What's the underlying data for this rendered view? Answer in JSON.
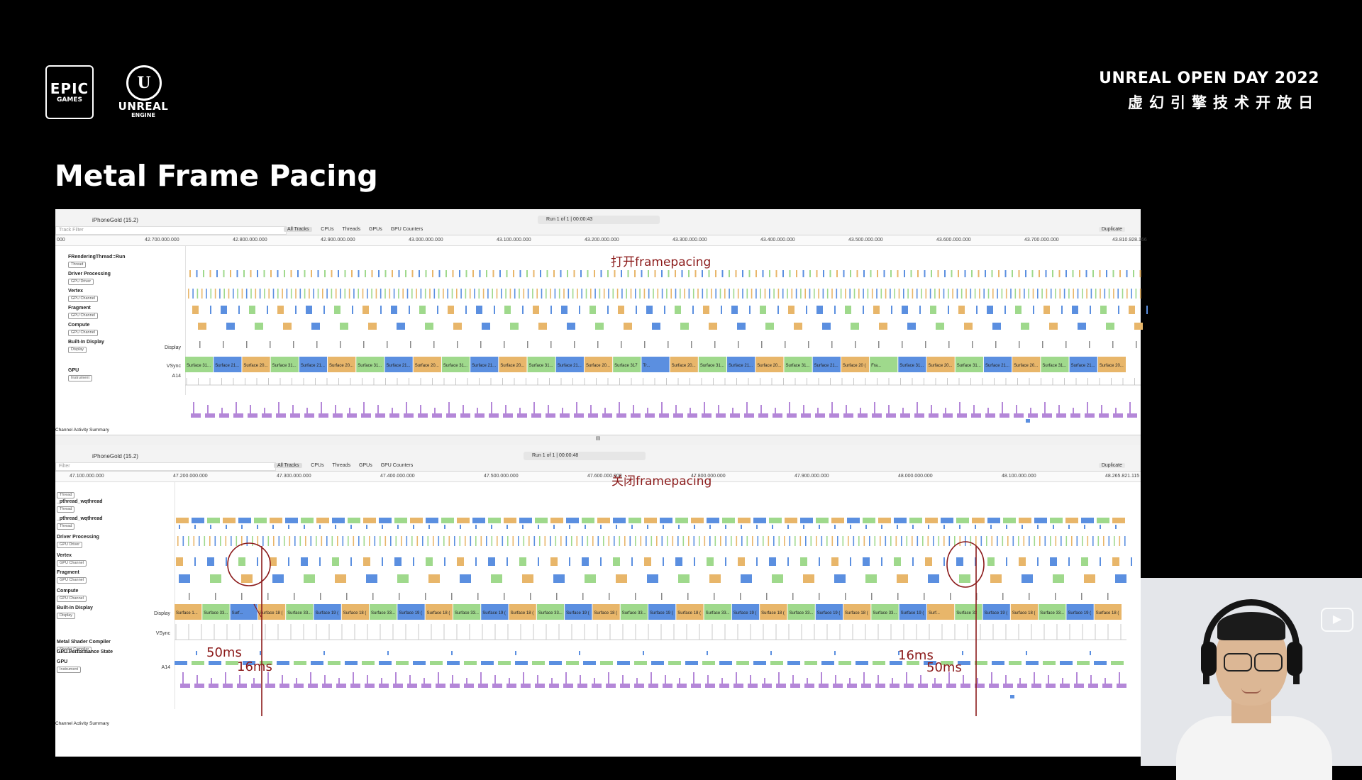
{
  "header": {
    "epic_line1": "EPIC",
    "epic_line2": "GAMES",
    "ue_line1": "UNREAL",
    "ue_line2": "ENGINE",
    "event_line1": "UNREAL OPEN DAY 2022",
    "event_line2": "虚幻引擎技术开放日"
  },
  "slide_title": "Metal Frame Pacing",
  "colors": {
    "orange": "#e8b66a",
    "blue": "#5b8fe0",
    "green": "#9fd98c",
    "purple": "#b487d8",
    "annotation": "#8b1a1a"
  },
  "top_trace": {
    "device": "iPhoneGold (15.2)",
    "run": "Run 1 of 1  |  00:00:43",
    "filter_placeholder": "Track Filter",
    "tabs": [
      "All Tracks",
      "CPUs",
      "Threads",
      "GPUs",
      "GPU Counters"
    ],
    "duplicate": "Duplicate",
    "ruler": [
      "000",
      "42.700.000.000",
      "42.800.000.000",
      "42.900.000.000",
      "43.000.000.000",
      "43.100.000.000",
      "43.200.000.000",
      "43.300.000.000",
      "43.400.000.000",
      "43.500.000.000",
      "43.600.000.000",
      "43.700.000.000",
      "43.810.928.166"
    ],
    "annotation": "打开framepacing",
    "lanes": [
      {
        "name": "FRenderingThread::Run",
        "tag": "Thread",
        "id": "0x4ae4dc5",
        "right": ""
      },
      {
        "name": "Driver Processing",
        "tag": "GPU Driver",
        "right": ""
      },
      {
        "name": "Vertex",
        "tag": "GPU Channel",
        "right": ""
      },
      {
        "name": "Fragment",
        "tag": "GPU Channel",
        "right": ""
      },
      {
        "name": "Compute",
        "tag": "GPU Channel",
        "right": ""
      },
      {
        "name": "Built-In Display",
        "tag": "Display",
        "right": "Display"
      },
      {
        "name": "",
        "tag": "",
        "right": "VSync"
      },
      {
        "name": "GPU",
        "tag": "Instrument",
        "right": "A14"
      }
    ],
    "display_labels": [
      "Surface 31...",
      "Surface 21...",
      "Surface 20...",
      "Surface 31...",
      "Surface 21...",
      "Surface 20...",
      "Surface 31...",
      "Surface 21...",
      "Surface 20...",
      "Surface 31...",
      "Surface 21...",
      "Surface 20...",
      "Surface 31...",
      "Surface 21...",
      "Surface 20...",
      "Surface 317",
      "Tr...",
      "Surface 20...",
      "Surface 31...",
      "Surface 21...",
      "Surface 20...",
      "Surface 31...",
      "Surface 21...",
      "Surface 20 (",
      "Fra...",
      "Surface 31...",
      "Surface 20...",
      "Surface 31...",
      "Surface 21...",
      "Surface 20...",
      "Surface 31...",
      "Surface 21...",
      "Surface 20..."
    ],
    "summary": "Channel Activity Summary"
  },
  "bottom_trace": {
    "device": "iPhoneGold (15.2)",
    "run": "Run 1 of 1  |  00:00:48",
    "filter_placeholder": "Filter",
    "tabs": [
      "All Tracks",
      "CPUs",
      "Threads",
      "GPUs",
      "GPU Counters"
    ],
    "duplicate": "Duplicate",
    "ruler": [
      "47.100.000.000",
      "47.200.000.000",
      "47.300.000.000",
      "47.400.000.000",
      "47.500.000.000",
      "47.600.000.000",
      "47.800.000.000",
      "47.900.000.000",
      "48.000.000.000",
      "48.100.000.000",
      "48.265.821.115"
    ],
    "annotation": "关闭framepacing",
    "lanes": [
      {
        "name": "",
        "tag": "Thread",
        "id": "0x4ab622",
        "right": ""
      },
      {
        "name": "_pthread_wqthread",
        "tag": "Thread",
        "id": "0x4ab64c",
        "right": ""
      },
      {
        "name": "_pthread_wqthread",
        "tag": "Thread",
        "id": "0x4ab6c2",
        "right": ""
      },
      {
        "name": "Driver Processing",
        "tag": "GPU Driver",
        "right": ""
      },
      {
        "name": "Vertex",
        "tag": "GPU Channel",
        "right": ""
      },
      {
        "name": "Fragment",
        "tag": "GPU Channel",
        "right": ""
      },
      {
        "name": "Compute",
        "tag": "GPU Channel",
        "right": ""
      },
      {
        "name": "Built-In Display",
        "tag": "Display",
        "right": "Display"
      },
      {
        "name": "",
        "tag": "",
        "right": "VSync"
      },
      {
        "name": "Metal Shader Compiler",
        "tag": "Shader Compiler",
        "right": ""
      },
      {
        "name": "GPU Performance State",
        "tag": "",
        "right": ""
      },
      {
        "name": "GPU",
        "tag": "Instrument",
        "right": "A14"
      }
    ],
    "display_labels": [
      "Surface 1...",
      "Surface 33...",
      "Surf...",
      "Surface 18 (",
      "Surface 33...",
      "Surface 19 (",
      "Surface 18 (",
      "Surface 33...",
      "Surface 19 (",
      "Surface 18 (",
      "Surface 33...",
      "Surface 19 (",
      "Surface 18 (",
      "Surface 33...",
      "Surface 19 (",
      "Surface 18 (",
      "Surface 33...",
      "Surface 19 (",
      "Surface 18 (",
      "Surface 33...",
      "Surface 19 (",
      "Surface 18 (",
      "Surface 33...",
      "Surface 19 (",
      "Surface 18 (",
      "Surface 33...",
      "Surface 19 (",
      "Surf...",
      "Surface 33",
      "Surface 19 (",
      "Surface 18 (",
      "Surface 33...",
      "Surface 19 (",
      "Surface 18 ("
    ],
    "timing_marks": [
      "50ms",
      "16ms",
      "16ms",
      "50ms"
    ],
    "summary": "Channel Activity Summary"
  },
  "webcam": {
    "overlay_icon": "play-icon"
  }
}
